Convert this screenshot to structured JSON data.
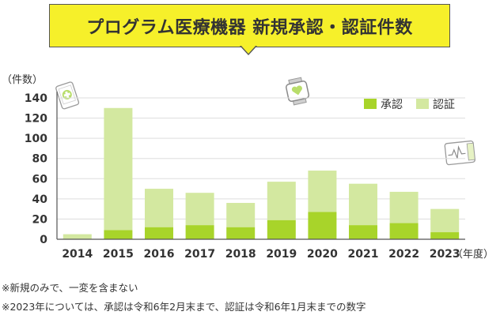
{
  "title": "プログラム医療機器 新規承認・認証件数",
  "notes": [
    "※新規のみで、一変を含まない",
    "※2023年については、承認は令和6年2月末まで、認証は令和6年1月末までの数字"
  ],
  "colors": {
    "approval": "#a8d42a",
    "certification": "#d3e8a0",
    "axis": "#555555",
    "grid": "#dddddd",
    "title_bg": "#f6f02a"
  },
  "icons": [
    "tablet-icon",
    "smartwatch-icon",
    "monitor-device-icon"
  ],
  "chart_data": {
    "type": "bar",
    "stacked": true,
    "categories": [
      "2014",
      "2015",
      "2016",
      "2017",
      "2018",
      "2019",
      "2020",
      "2021",
      "2022",
      "2023"
    ],
    "series": [
      {
        "name": "承認",
        "values": [
          0,
          9,
          12,
          14,
          12,
          19,
          27,
          14,
          16,
          7
        ]
      },
      {
        "name": "認証",
        "values": [
          5,
          121,
          38,
          32,
          24,
          38,
          41,
          41,
          31,
          23
        ]
      }
    ],
    "ylabel": "（件数）",
    "xlabel": "（年度）",
    "ylim": [
      0,
      140
    ],
    "yticks": [
      0,
      20,
      40,
      60,
      80,
      100,
      120,
      140
    ],
    "legend": "top-right",
    "grid": true
  }
}
